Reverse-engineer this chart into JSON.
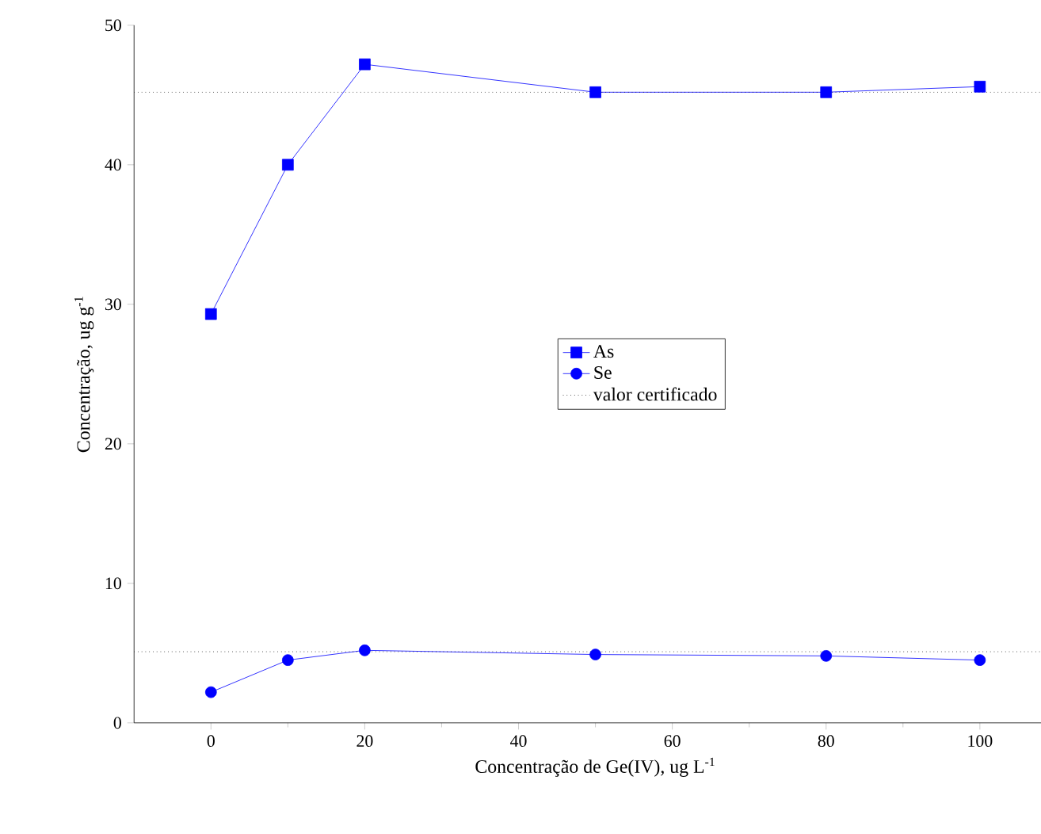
{
  "chart_data": {
    "type": "line",
    "xlabel": "Concentração de Ge(IV), ug L$^{-1}$",
    "ylabel": "Concentração, ug g$^{-1}$",
    "x": [
      0,
      10,
      20,
      50,
      80,
      100
    ],
    "series": [
      {
        "name": "As",
        "color": "#0000ff",
        "marker": "square",
        "values": [
          29.3,
          40.0,
          47.2,
          45.2,
          45.2,
          45.6
        ]
      },
      {
        "name": "Se",
        "color": "#0000ff",
        "marker": "circle",
        "values": [
          2.2,
          4.5,
          5.2,
          4.9,
          4.8,
          4.5
        ]
      }
    ],
    "ref_lines": [
      {
        "axis": "y",
        "value": 45.2,
        "label": "valor certificado",
        "color": "#000000",
        "line_style": "dotted"
      },
      {
        "axis": "y",
        "value": 5.1,
        "color": "#000000",
        "line_style": "dotted"
      }
    ],
    "xlim": [
      -10,
      110
    ],
    "ylim": [
      0,
      50
    ],
    "xticks": [
      0,
      20,
      40,
      60,
      80,
      100
    ],
    "yticks": [
      0,
      10,
      20,
      30,
      40,
      50
    ],
    "legend": "center",
    "grid": false,
    "line_style": "solid"
  }
}
